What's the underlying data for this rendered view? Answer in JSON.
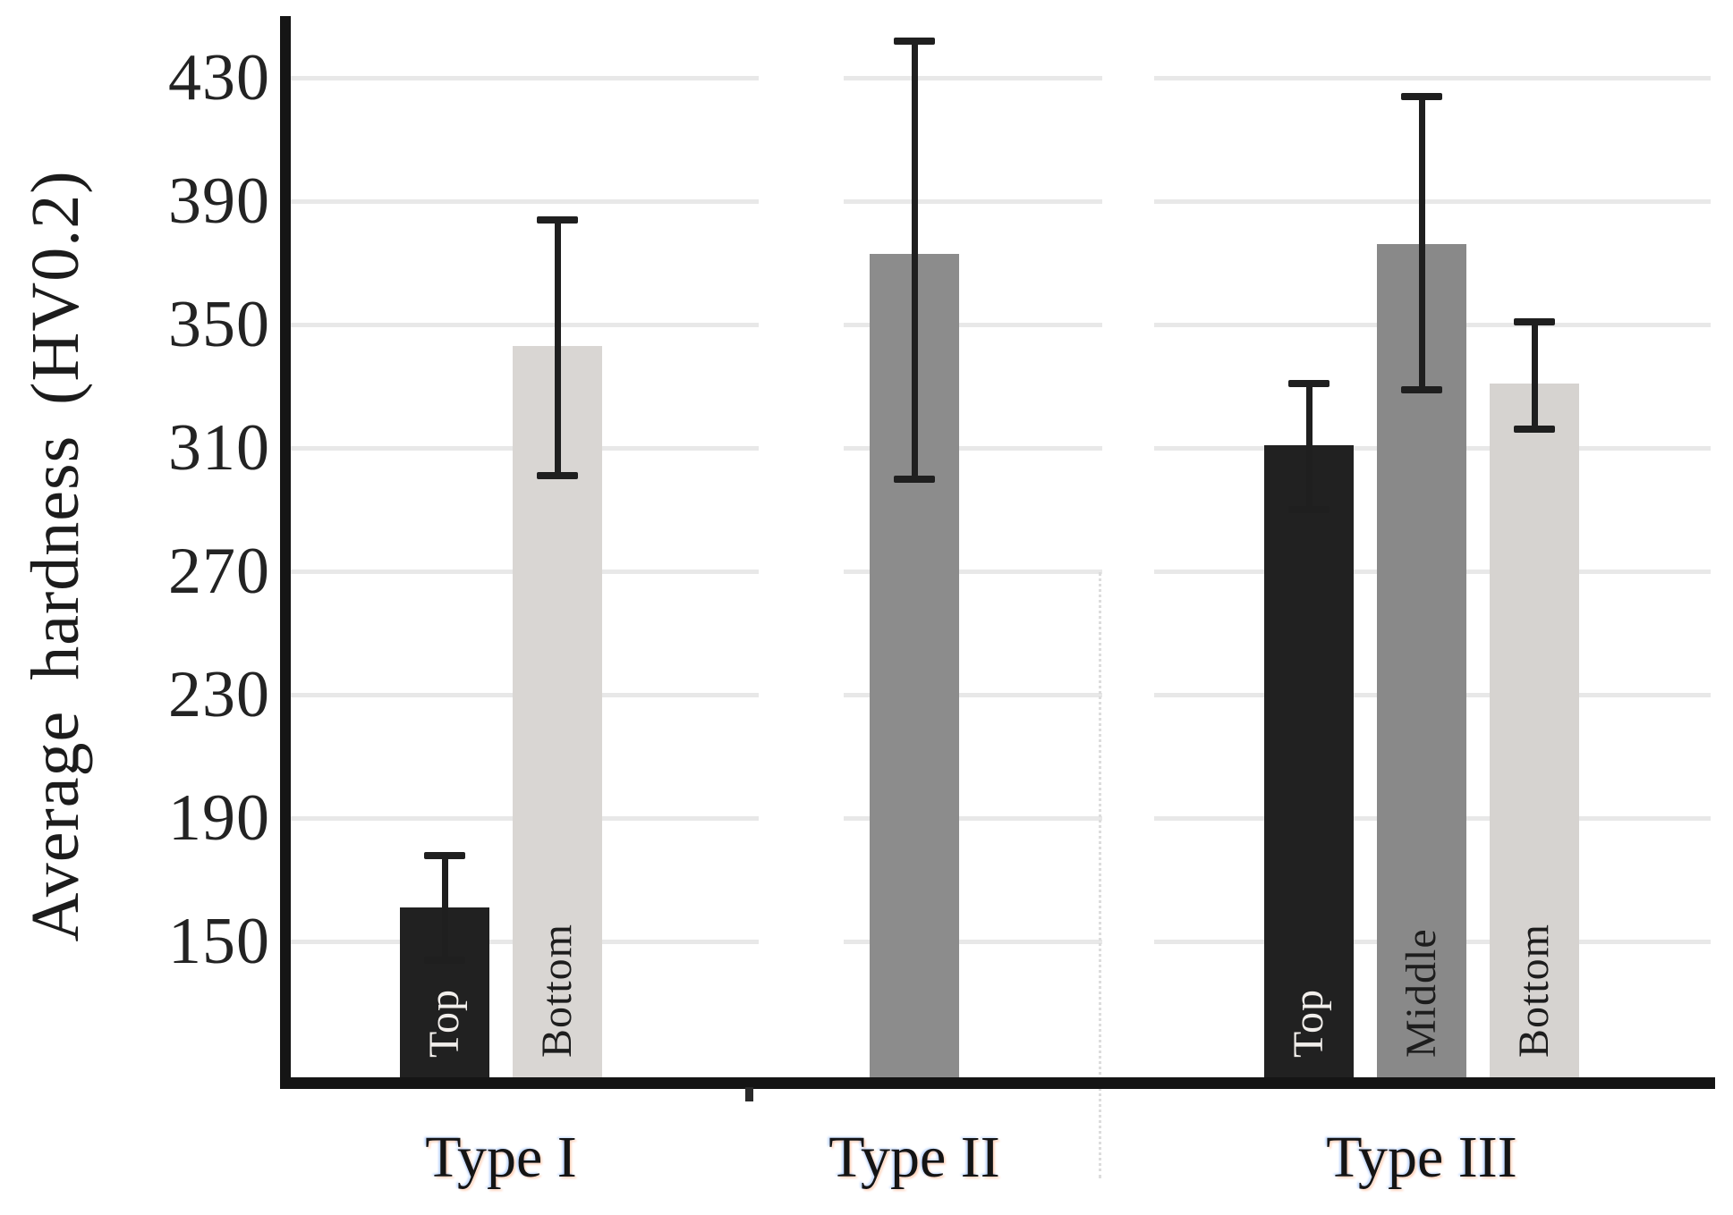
{
  "figure": {
    "background": "#ffffff"
  },
  "chart_data": {
    "type": "bar",
    "title": "",
    "ylabel": "Average hardness (HV0.2)",
    "xlabel": "",
    "ylim": [
      106,
      450
    ],
    "yticks": [
      150,
      190,
      230,
      270,
      310,
      350,
      390,
      430
    ],
    "grid": "horizontal",
    "grid_color": "#e8e8e8",
    "axis_color": "#151515",
    "error_bar_color": "#1f1f1f",
    "legend_position": "none",
    "error_bars": true,
    "categories": [
      "Type I",
      "Type II",
      "Type III"
    ],
    "groups": [
      {
        "category": "Type I",
        "bars": [
          {
            "label": "Top",
            "value": 161,
            "err_low": 144,
            "err_high": 178,
            "color": "#212121",
            "label_color": "#f2efec"
          },
          {
            "label": "Bottom",
            "value": 343,
            "err_low": 301,
            "err_high": 384,
            "color": "#d9d6d3",
            "label_color": "#1d1d1d"
          }
        ]
      },
      {
        "category": "Type II",
        "bars": [
          {
            "label": "",
            "value": 373,
            "err_low": 300,
            "err_high": 442,
            "color": "#8c8c8c",
            "label_color": "#1d1d1d"
          }
        ]
      },
      {
        "category": "Type III",
        "bars": [
          {
            "label": "Top",
            "value": 311,
            "err_low": 290,
            "err_high": 331,
            "color": "#212121",
            "label_color": "#f2efec"
          },
          {
            "label": "Middle",
            "value": 376,
            "err_low": 329,
            "err_high": 424,
            "color": "#898989",
            "label_color": "#1d1d1d"
          },
          {
            "label": "Bottom",
            "value": 331,
            "err_low": 316,
            "err_high": 351,
            "color": "#d6d3d0",
            "label_color": "#1d1d1d"
          }
        ]
      }
    ]
  }
}
